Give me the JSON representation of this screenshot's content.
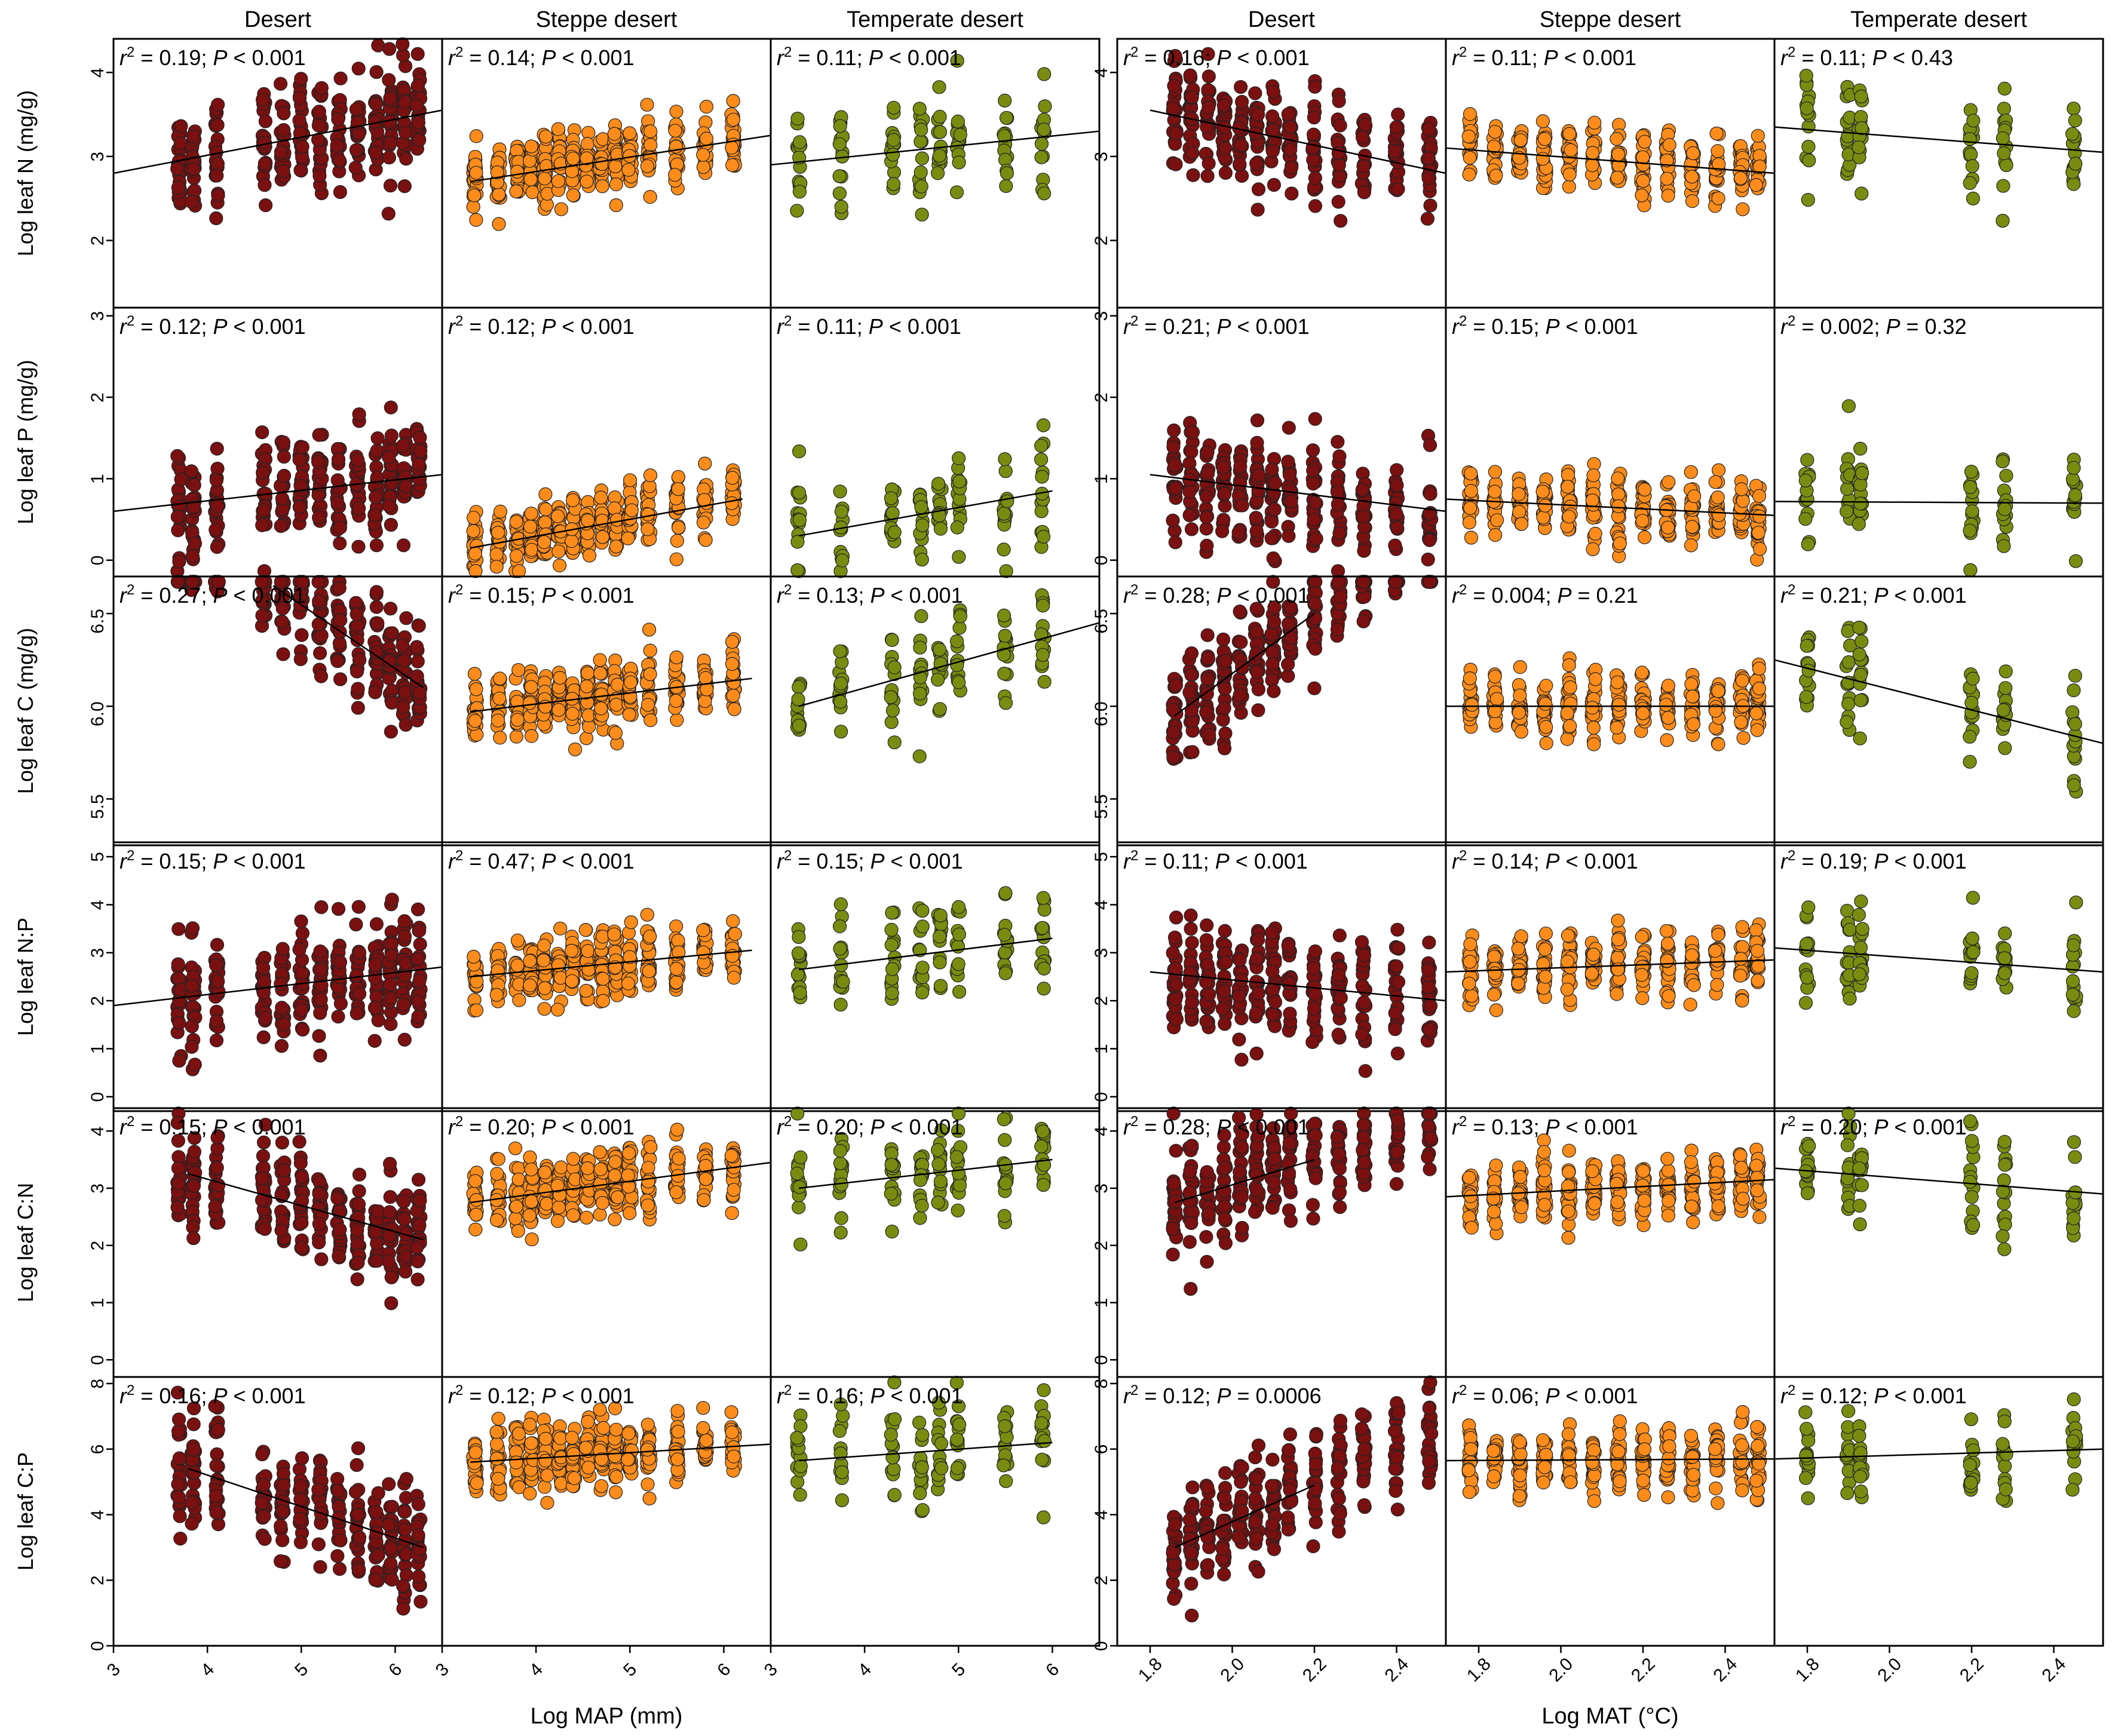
{
  "colors": {
    "desert": "#7a1010",
    "steppe": "#ff8c1a",
    "temperate": "#7a8c10"
  },
  "chart_data": {
    "type": "scatter",
    "title": "",
    "column_titles": [
      "Desert",
      "Steppe desert",
      "Temperate desert",
      "Desert",
      "Steppe desert",
      "Temperate desert"
    ],
    "column_groups": [
      "desert",
      "steppe",
      "temperate",
      "desert",
      "steppe",
      "temperate"
    ],
    "blocks": [
      {
        "xlabel": "Log MAP (mm)",
        "xlim": [
          3,
          6.5
        ],
        "xticks": [
          3,
          4,
          5,
          6
        ]
      },
      {
        "xlabel": "Log MAT (°C)",
        "xlim": [
          1.72,
          2.52
        ],
        "xticks": [
          1.8,
          2.0,
          2.2,
          2.4
        ],
        "xticklabels": [
          "1.8",
          "2.0",
          "2.2",
          "2.4"
        ]
      }
    ],
    "rows": [
      {
        "ylabel": "Log leaf N (mg/g)",
        "ylim": [
          1.2,
          4.4
        ],
        "yticks": [
          2,
          3,
          4
        ],
        "stats": [
          [
            "0.19",
            "< 0.001"
          ],
          [
            "0.14",
            "< 0.001"
          ],
          [
            "0.11",
            "< 0.001"
          ],
          [
            "0.16",
            "< 0.001"
          ],
          [
            "0.11",
            "< 0.001"
          ],
          [
            "0.11",
            "< 0.43"
          ]
        ],
        "fits": [
          [
            3,
            2.8,
            6.5,
            3.55
          ],
          [
            3.3,
            2.7,
            6.5,
            3.25
          ],
          [
            3,
            2.9,
            6.5,
            3.3
          ],
          [
            1.8,
            3.55,
            2.52,
            2.8
          ],
          [
            1.72,
            3.1,
            2.52,
            2.8
          ],
          [
            1.72,
            3.35,
            2.52,
            3.05
          ]
        ]
      },
      {
        "ylabel": "Log leaf P (mg/g)",
        "ylim": [
          -0.2,
          3.1
        ],
        "yticks": [
          0,
          1,
          2,
          3
        ],
        "stats": [
          [
            "0.12",
            "< 0.001"
          ],
          [
            "0.12",
            "< 0.001"
          ],
          [
            "0.11",
            "< 0.001"
          ],
          [
            "0.21",
            "< 0.001"
          ],
          [
            "0.15",
            "< 0.001"
          ],
          [
            "0.002",
            "= 0.32"
          ]
        ],
        "fits": [
          [
            3,
            0.6,
            6.5,
            1.05
          ],
          [
            3.3,
            0.15,
            6.2,
            0.75
          ],
          [
            3.3,
            0.3,
            6,
            0.85
          ],
          [
            1.8,
            1.05,
            2.52,
            0.6
          ],
          [
            1.72,
            0.75,
            2.52,
            0.55
          ],
          [
            1.72,
            0.72,
            2.52,
            0.7
          ]
        ]
      },
      {
        "ylabel": "Log leaf C (mg/g)",
        "ylim": [
          5.25,
          6.7
        ],
        "yticks": [
          5.5,
          6.0,
          6.5
        ],
        "yticklabels": [
          "5.5",
          "6.0",
          "6.5"
        ],
        "stats": [
          [
            "0.27",
            "< 0.001"
          ],
          [
            "0.15",
            "< 0.001"
          ],
          [
            "0.13",
            "< 0.001"
          ],
          [
            "0.28",
            "< 0.001"
          ],
          [
            "0.004",
            "= 0.21"
          ],
          [
            "0.21",
            "< 0.001"
          ]
        ],
        "fits": [
          [
            4.7,
            6.65,
            6.3,
            6.1
          ],
          [
            3.3,
            5.97,
            6.3,
            6.15
          ],
          [
            3.3,
            6.0,
            6.5,
            6.45
          ],
          [
            1.86,
            5.95,
            2.2,
            6.5
          ],
          [
            1.72,
            6.0,
            2.52,
            6.0
          ],
          [
            1.72,
            6.25,
            2.52,
            5.8
          ]
        ]
      },
      {
        "ylabel": "Log leaf N:P",
        "ylim": [
          -0.3,
          5.3
        ],
        "yticks": [
          0,
          1,
          2,
          3,
          4,
          5
        ],
        "stats": [
          [
            "0.15",
            "< 0.001"
          ],
          [
            "0.47",
            "< 0.001"
          ],
          [
            "0.15",
            "< 0.001"
          ],
          [
            "0.11",
            "< 0.001"
          ],
          [
            "0.14",
            "< 0.001"
          ],
          [
            "0.19",
            "< 0.001"
          ]
        ],
        "fits": [
          [
            3,
            1.9,
            6.5,
            2.7
          ],
          [
            3.3,
            2.5,
            6.3,
            3.05
          ],
          [
            3.3,
            2.65,
            6,
            3.3
          ],
          [
            1.8,
            2.6,
            2.52,
            2.0
          ],
          [
            1.72,
            2.6,
            2.52,
            2.85
          ],
          [
            1.72,
            3.1,
            2.52,
            2.6
          ]
        ]
      },
      {
        "ylabel": "Log leaf C:N",
        "ylim": [
          -0.3,
          4.4
        ],
        "yticks": [
          0,
          1,
          2,
          3,
          4
        ],
        "stats": [
          [
            "0.15",
            "< 0.001"
          ],
          [
            "0.20",
            "< 0.001"
          ],
          [
            "0.20",
            "< 0.001"
          ],
          [
            "0.28",
            "< 0.001"
          ],
          [
            "0.13",
            "< 0.001"
          ],
          [
            "0.20",
            "< 0.001"
          ]
        ],
        "fits": [
          [
            3.8,
            3.25,
            6.3,
            2.1
          ],
          [
            3.3,
            2.75,
            6.5,
            3.45
          ],
          [
            3.3,
            3.0,
            6,
            3.5
          ],
          [
            1.86,
            2.75,
            2.2,
            3.5
          ],
          [
            1.72,
            2.85,
            2.52,
            3.15
          ],
          [
            1.72,
            3.35,
            2.52,
            2.9
          ]
        ]
      },
      {
        "ylabel": "Log leaf C:P",
        "ylim": [
          0,
          8.2
        ],
        "yticks": [
          0,
          2,
          4,
          6,
          8
        ],
        "stats": [
          [
            "0.16",
            "< 0.001"
          ],
          [
            "0.12",
            "< 0.001"
          ],
          [
            "0.16",
            "< 0.001"
          ],
          [
            "0.12",
            "= 0.0006"
          ],
          [
            "0.06",
            "< 0.001"
          ],
          [
            "0.12",
            "< 0.001"
          ]
        ],
        "fits": [
          [
            3.8,
            5.4,
            6.3,
            3.0
          ],
          [
            3.3,
            5.6,
            6.5,
            6.15
          ],
          [
            3.3,
            5.65,
            6,
            6.2
          ],
          [
            1.86,
            3.0,
            2.2,
            4.9
          ],
          [
            1.72,
            5.65,
            2.52,
            5.7
          ],
          [
            1.72,
            5.7,
            2.52,
            6.0
          ]
        ]
      }
    ],
    "series_model": {
      "desert_map": {
        "clusters": [
          [
            3.7,
            0.3
          ],
          [
            4.6,
            0.2
          ],
          [
            5.0,
            0.15
          ],
          [
            5.3,
            0.1
          ],
          [
            5.6,
            0.1
          ],
          [
            5.9,
            0.08
          ],
          [
            6.2,
            0.1
          ]
        ]
      },
      "desert_mat": {
        "clusters": [
          [
            1.88,
            0.03
          ],
          [
            1.95,
            0.04
          ],
          [
            2.05,
            0.03
          ],
          [
            2.12,
            0.03
          ],
          [
            2.2,
            0.04
          ],
          [
            2.3,
            0.05
          ],
          [
            2.42,
            0.05
          ],
          [
            2.5,
            0.02
          ]
        ]
      }
    }
  }
}
